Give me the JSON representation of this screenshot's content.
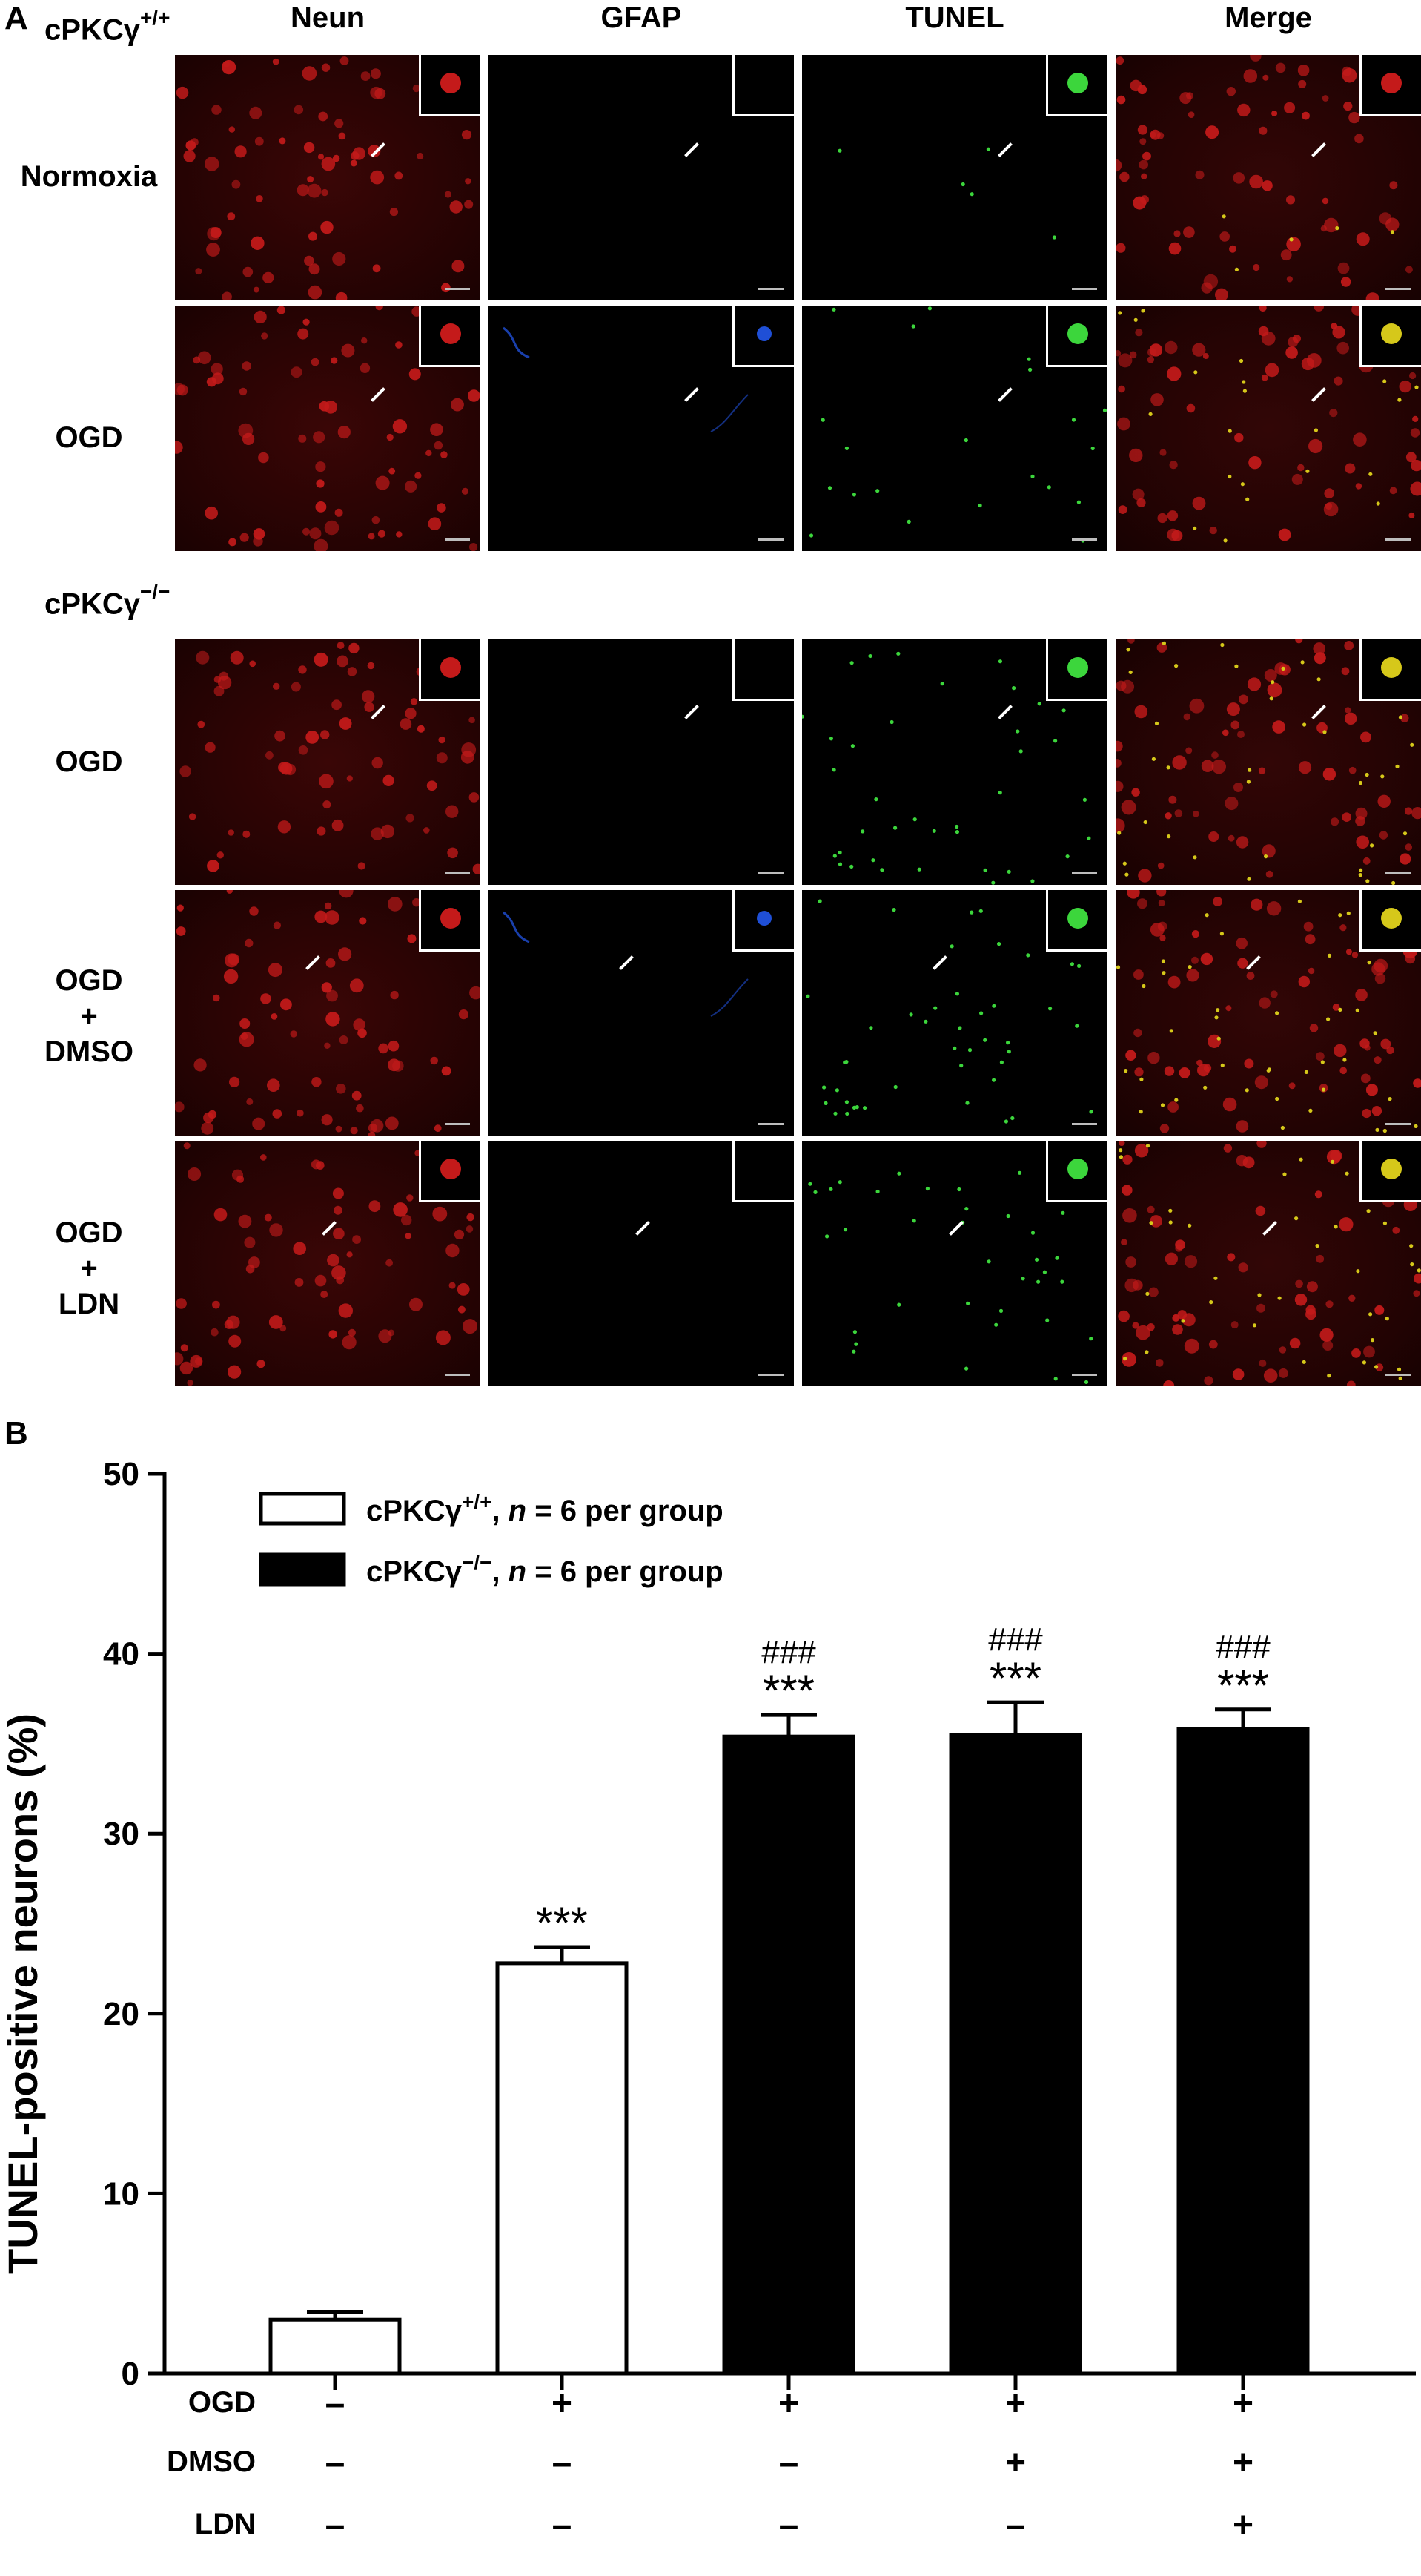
{
  "panel_a": {
    "letter": "A",
    "genotype_wt": {
      "base": "cPKCγ",
      "sup": "+/+"
    },
    "genotype_ko": {
      "base": "cPKCγ",
      "sup": "−/−"
    },
    "columns": [
      "Neun",
      "GFAP",
      "TUNEL",
      "Merge"
    ],
    "rows": [
      {
        "label_lines": [
          "Normoxia"
        ]
      },
      {
        "label_lines": [
          "OGD"
        ]
      },
      {
        "label_lines": [
          "OGD"
        ]
      },
      {
        "label_lines": [
          "OGD",
          "+",
          "DMSO"
        ]
      },
      {
        "label_lines": [
          "OGD",
          "+",
          "LDN"
        ]
      }
    ],
    "colors": {
      "neun": "#c41a1a",
      "gfap": "#1f4fd6",
      "tunel": "#3cd63c",
      "merge_overlap": "#d6c81a"
    }
  },
  "panel_b": {
    "letter": "B",
    "legend": [
      {
        "genotype_base": "cPKCγ",
        "genotype_sup": "+/+",
        "n_label": "n",
        "rest": " = 6 per group",
        "fill": "#ffffff"
      },
      {
        "genotype_base": "cPKCγ",
        "genotype_sup": "−/−",
        "n_label": "n",
        "rest": " = 6 per group",
        "fill": "#000000"
      }
    ],
    "treatment_rows": [
      {
        "label": "OGD",
        "values": [
          "–",
          "+",
          "+",
          "+",
          "+"
        ]
      },
      {
        "label": "DMSO",
        "values": [
          "–",
          "–",
          "–",
          "+",
          "+"
        ]
      },
      {
        "label": "LDN",
        "values": [
          "–",
          "–",
          "–",
          "–",
          "+"
        ]
      }
    ]
  },
  "chart_data": {
    "type": "bar",
    "ylabel": "TUNEL-positive neurons (%)",
    "ylim": [
      0,
      50
    ],
    "yticks": [
      0,
      10,
      20,
      30,
      40,
      50
    ],
    "categories": [
      "Normoxia",
      "OGD",
      "OGD",
      "OGD+DMSO",
      "OGD+DMSO+LDN"
    ],
    "values": [
      3.0,
      22.8,
      35.4,
      35.5,
      35.8
    ],
    "errors": [
      0.4,
      0.9,
      1.2,
      1.8,
      1.1
    ],
    "fills": [
      "#ffffff",
      "#ffffff",
      "#000000",
      "#000000",
      "#000000"
    ],
    "annotations": [
      {
        "bar": 1,
        "lines": [
          "***"
        ]
      },
      {
        "bar": 2,
        "lines": [
          "###",
          "***"
        ]
      },
      {
        "bar": 3,
        "lines": [
          "###",
          "***"
        ]
      },
      {
        "bar": 4,
        "lines": [
          "###",
          "***"
        ]
      }
    ]
  }
}
